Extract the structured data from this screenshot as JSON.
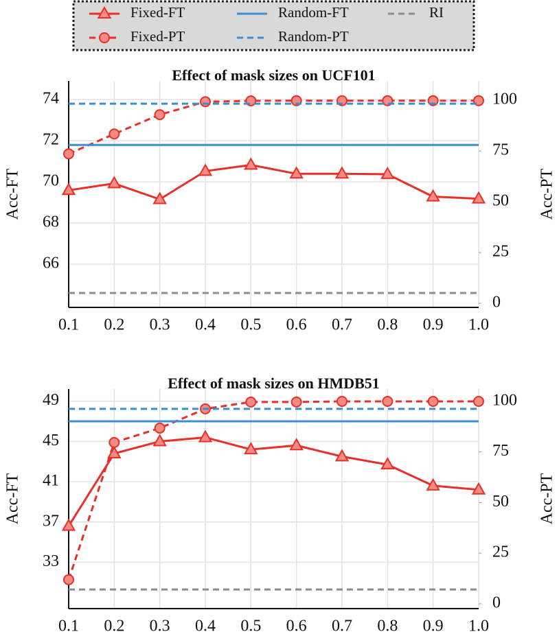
{
  "legend": [
    {
      "name": "Fixed-FT",
      "color": "#e8302a",
      "dash": "solid",
      "marker": "triangle"
    },
    {
      "name": "Fixed-PT",
      "color": "#e8302a",
      "dash": "dashed",
      "marker": "circle"
    },
    {
      "name": "Random-FT",
      "color": "#3a8fd0",
      "dash": "solid",
      "marker": "none"
    },
    {
      "name": "Random-PT",
      "color": "#3a8fd0",
      "dash": "dashed",
      "marker": "none"
    },
    {
      "name": "RI",
      "color": "#8c8c8c",
      "dash": "dashed",
      "marker": "none"
    }
  ],
  "chart_data": [
    {
      "type": "line",
      "title": "Effect of mask sizes on UCF101",
      "ylabel": "Acc-FT",
      "y2label": "Acc-PT",
      "x": [
        0.1,
        0.2,
        0.3,
        0.4,
        0.5,
        0.6,
        0.7,
        0.8,
        0.9,
        1
      ],
      "xlim": [
        0.1,
        1
      ],
      "xticks": [
        0.1,
        0.2,
        0.3,
        0.4,
        0.5,
        0.6,
        0.7,
        0.8,
        0.9,
        {
          "value": 1,
          "label": "1.0"
        }
      ],
      "ylim": [
        63.9,
        74.9
      ],
      "yticks": [
        66,
        68,
        70,
        72,
        74
      ],
      "y2lim": [
        -2,
        109.5
      ],
      "y2ticks": [
        0,
        25,
        50,
        75,
        100
      ],
      "grid": true,
      "series": [
        {
          "values": [
            69.59,
            69.92,
            69.15,
            70.52,
            70.82,
            70.39,
            70.39,
            70.37,
            69.28,
            69.18
          ]
        },
        {
          "axis": "y2",
          "values": [
            73.6,
            83.4,
            92.9,
            99.3,
            99.7,
            99.8,
            99.8,
            99.8,
            99.8,
            99.8
          ]
        },
        {
          "value": 71.79
        },
        {
          "axis": "y2",
          "value": 98.3
        },
        {
          "value": 64.6
        }
      ]
    },
    {
      "type": "line",
      "title": "Effect of mask sizes on HMDB51",
      "ylabel": "Acc-FT",
      "y2label": "Acc-PT",
      "x": [
        0.1,
        0.2,
        0.3,
        0.4,
        0.5,
        0.6,
        0.7,
        0.8,
        0.9,
        1
      ],
      "xlim": [
        0.1,
        1
      ],
      "xticks": [
        0.1,
        0.2,
        0.3,
        0.4,
        0.5,
        0.6,
        0.7,
        0.8,
        0.9,
        {
          "value": 1,
          "label": "1.0"
        }
      ],
      "ylim": [
        28.4,
        50.2
      ],
      "yticks": [
        33,
        37,
        41,
        45,
        49
      ],
      "y2lim": [
        -2.4,
        106.1
      ],
      "y2ticks": [
        0,
        25,
        50,
        75,
        100
      ],
      "grid": true,
      "series": [
        {
          "values": [
            36.6,
            43.8,
            45.0,
            45.4,
            44.2,
            44.6,
            43.5,
            42.7,
            40.6,
            40.2
          ]
        },
        {
          "axis": "y2",
          "values": [
            11.9,
            79.7,
            86.8,
            96.3,
            99.7,
            99.7,
            100,
            100,
            100,
            100
          ]
        },
        {
          "value": 47.0
        },
        {
          "axis": "y2",
          "value": 96.3
        },
        {
          "value": 30.3
        }
      ]
    }
  ]
}
